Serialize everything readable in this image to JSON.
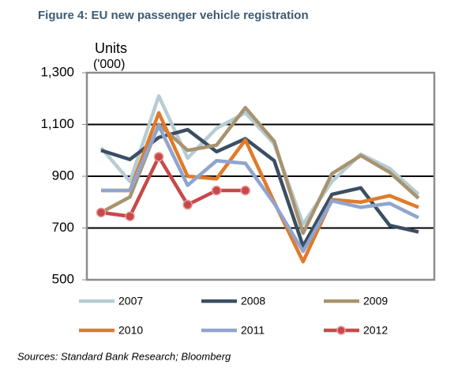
{
  "chart_data": {
    "type": "line",
    "title": "Figure 4: EU new passenger vehicle registration",
    "y_label": "Units",
    "y_label_unit": "('000)",
    "source": "Sources: Standard Bank Research; Bloomberg",
    "categories": [
      null,
      null,
      null,
      null,
      null,
      null,
      null,
      null,
      null,
      null,
      null,
      null
    ],
    "ylim": [
      500,
      1300
    ],
    "yticks": [
      500,
      700,
      900,
      {
        "value": 1100,
        "label": "1,100"
      },
      {
        "value": 1300,
        "label": "1,300"
      }
    ],
    "grid": true,
    "legend": "bottom",
    "series": [
      {
        "name": "2007",
        "color": "#b7ccd3",
        "values": [
          1010,
          880,
          1210,
          970,
          1085,
          1145,
          1025,
          715,
          880,
          985,
          930,
          830
        ]
      },
      {
        "name": "2008",
        "color": "#3b4f63",
        "values": [
          1000,
          965,
          1050,
          1080,
          995,
          1045,
          960,
          630,
          830,
          855,
          710,
          685
        ]
      },
      {
        "name": "2009",
        "color": "#a8936f",
        "values": [
          760,
          820,
          1100,
          1000,
          1020,
          1165,
          1035,
          680,
          910,
          980,
          915,
          815
        ]
      },
      {
        "name": "2010",
        "color": "#e07b2a",
        "values": [
          845,
          845,
          1145,
          900,
          890,
          1040,
          800,
          570,
          810,
          800,
          825,
          780
        ]
      },
      {
        "name": "2011",
        "color": "#8fa5cf",
        "values": [
          845,
          845,
          1095,
          865,
          960,
          950,
          795,
          610,
          805,
          780,
          795,
          740
        ]
      },
      {
        "name": "2012",
        "color": "#c8494a",
        "markers": true,
        "values": [
          760,
          745,
          975,
          790,
          845,
          845,
          null,
          null,
          null,
          null,
          null,
          null
        ]
      }
    ]
  }
}
